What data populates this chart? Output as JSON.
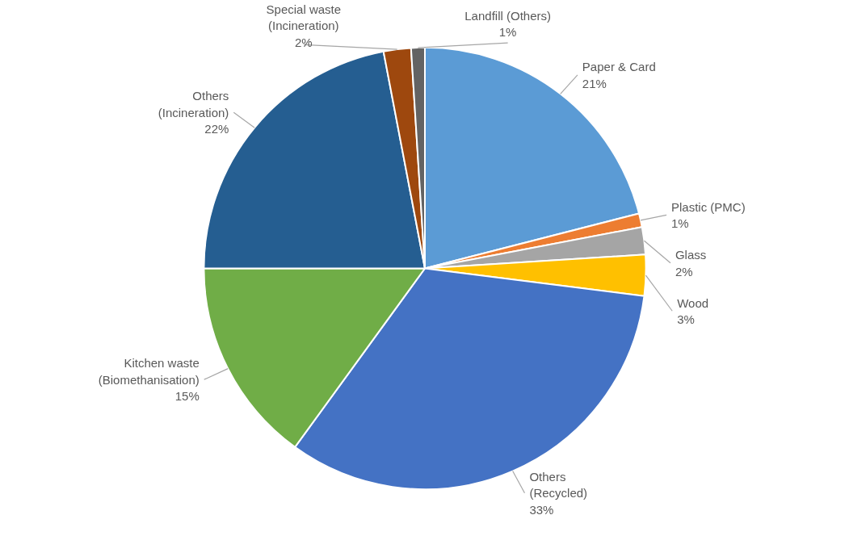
{
  "chart_data": {
    "type": "pie",
    "categories": [
      "Paper & Card",
      "Plastic (PMC)",
      "Glass",
      "Wood",
      "Others\n(Recycled)",
      "Kitchen waste\n(Biomethanisation)",
      "Others\n(Incineration)",
      "Special waste\n(Incineration)",
      "Landfill (Others)"
    ],
    "values": [
      21,
      1,
      2,
      3,
      33,
      15,
      22,
      2,
      1
    ],
    "colors": [
      "#5b9bd5",
      "#ed7d31",
      "#a5a5a5",
      "#ffc000",
      "#4472c4",
      "#70ad47",
      "#255e91",
      "#9e480e",
      "#636363"
    ],
    "value_labels": [
      "21%",
      "1%",
      "2%",
      "3%",
      "33%",
      "15%",
      "22%",
      "2%",
      "1%"
    ]
  }
}
